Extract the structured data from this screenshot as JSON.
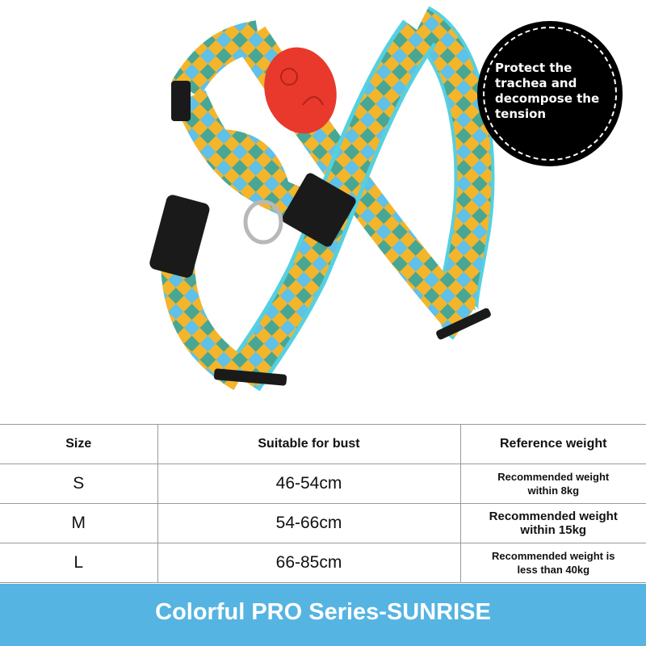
{
  "product": {
    "name": "dog harness",
    "colors": {
      "strap_yellow": "#f4b52a",
      "strap_blue": "#5fc0e8",
      "strap_teal": "#2aa3a8",
      "trim": "#55d0e0",
      "tag": "#e8392c",
      "buckle": "#1a1a1a"
    }
  },
  "badge": {
    "text": "Protect the trachea and decompose the tension"
  },
  "size_table": {
    "headers": [
      "Size",
      "Suitable for bust",
      "Reference weight"
    ],
    "rows": [
      {
        "size": "S",
        "bust": "46-54cm",
        "weight": "Recommended weight within 8kg"
      },
      {
        "size": "M",
        "bust": "54-66cm",
        "weight": "Recommended weight within 15kg"
      },
      {
        "size": "L",
        "bust": "66-85cm",
        "weight": "Recommended weight is less than 40kg"
      }
    ]
  },
  "banner": {
    "title": "Colorful PRO Series-SUNRISE",
    "color": "#55b4e2"
  }
}
